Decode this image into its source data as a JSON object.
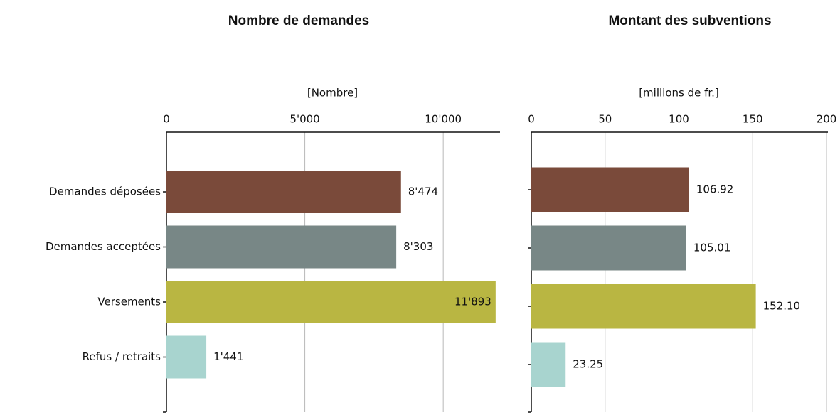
{
  "chart_data": [
    {
      "type": "bar",
      "orientation": "horizontal",
      "title": "Nombre de demandes",
      "x_label": "[Nombre]",
      "categories": [
        "Demandes déposées",
        "Demandes acceptées",
        "Versements",
        "Refus / retraits"
      ],
      "values": [
        8474,
        8303,
        11893,
        1441
      ],
      "value_labels": [
        "8'474",
        "8'303",
        "11'893",
        "1'441"
      ],
      "colors": [
        "#7a4a3a",
        "#788786",
        "#b9b642",
        "#a8d4cf"
      ],
      "xlim": [
        0,
        12000
      ],
      "xticks": [
        0,
        {
          "value": 5000,
          "label": "5'000"
        },
        {
          "value": 10000,
          "label": "10'000"
        }
      ],
      "grid": true
    },
    {
      "type": "bar",
      "orientation": "horizontal",
      "title": "Montant des subventions",
      "x_label": "[millions de fr.]",
      "values": [
        106.92,
        105.01,
        152.1,
        23.25
      ],
      "value_labels": [
        "106.92",
        "105.01",
        "152.10",
        "23.25"
      ],
      "colors": [
        "#7a4a3a",
        "#788786",
        "#b9b642",
        "#a8d4cf"
      ],
      "xlim": [
        0,
        200
      ],
      "xticks": [
        0,
        50,
        100,
        150,
        200
      ],
      "grid": true
    }
  ]
}
